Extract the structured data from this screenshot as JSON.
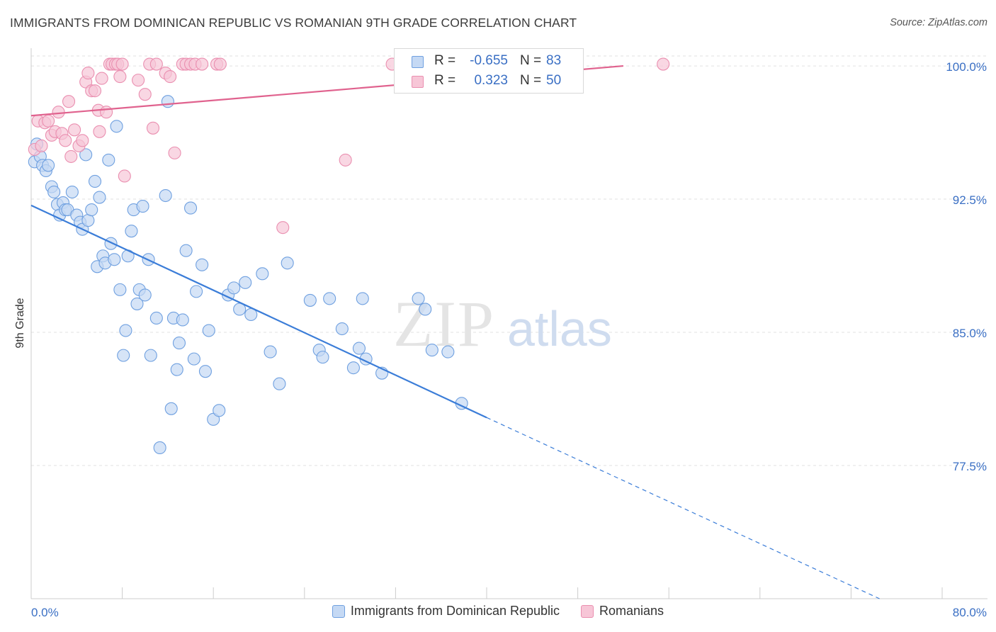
{
  "title": "IMMIGRANTS FROM DOMINICAN REPUBLIC VS ROMANIAN 9TH GRADE CORRELATION CHART",
  "source": "Source: ZipAtlas.com",
  "watermark": {
    "zip": "ZIP",
    "atlas": "atlas"
  },
  "stats": {
    "rows": [
      {
        "r_label": "R =",
        "r_value": "-0.655",
        "n_label": "N =",
        "n_value": "83",
        "color": "#6fa0e0",
        "fill": "#c5d9f4"
      },
      {
        "r_label": "R =",
        "r_value": "0.323",
        "n_label": "N =",
        "n_value": "50",
        "color": "#ea8fb0",
        "fill": "#f7c6d7"
      }
    ]
  },
  "legend": [
    {
      "label": "Immigrants from Dominican Republic",
      "fill": "#c5d9f4",
      "stroke": "#6fa0e0"
    },
    {
      "label": "Romanians",
      "fill": "#f7c6d7",
      "stroke": "#ea8fb0"
    }
  ],
  "chart_data": {
    "type": "scatter",
    "ylabel": "9th Grade",
    "xlim": [
      0,
      80
    ],
    "ylim": [
      70.0,
      101.0
    ],
    "x_tick_labels": [
      {
        "value": 0,
        "label": "0.0%"
      },
      {
        "value": 80,
        "label": "80.0%"
      }
    ],
    "y_ticks": [
      {
        "value": 100.0,
        "label": "100.0%"
      },
      {
        "value": 92.5,
        "label": "92.5%"
      },
      {
        "value": 85.0,
        "label": "85.0%"
      },
      {
        "value": 77.5,
        "label": "77.5%"
      }
    ],
    "x_minor_ticks": [
      8,
      16,
      24,
      32,
      40,
      48,
      56,
      64,
      72,
      80
    ],
    "grid": true,
    "series": [
      {
        "name": "Immigrants from Dominican Republic",
        "color": "#3b7dd8",
        "fill": "#c5d9f4",
        "stroke": "#6fa0e0",
        "trend": {
          "x0": 0,
          "y0": 92.15,
          "x1": 40,
          "y1": 80.2,
          "dash_to_x": 74.5,
          "dash_to_y": 70.0
        },
        "points": [
          [
            0.3,
            94.6
          ],
          [
            0.5,
            95.6
          ],
          [
            0.8,
            94.9
          ],
          [
            1.0,
            94.4
          ],
          [
            1.3,
            94.1
          ],
          [
            1.5,
            94.4
          ],
          [
            1.8,
            93.2
          ],
          [
            2.0,
            92.9
          ],
          [
            2.3,
            92.2
          ],
          [
            2.5,
            91.6
          ],
          [
            2.8,
            92.3
          ],
          [
            3.0,
            91.9
          ],
          [
            3.2,
            91.9
          ],
          [
            3.6,
            92.9
          ],
          [
            4.0,
            91.6
          ],
          [
            4.3,
            91.2
          ],
          [
            4.5,
            90.8
          ],
          [
            4.8,
            95.0
          ],
          [
            5.0,
            91.3
          ],
          [
            5.3,
            91.9
          ],
          [
            5.6,
            93.5
          ],
          [
            5.8,
            88.7
          ],
          [
            6.0,
            92.6
          ],
          [
            6.3,
            89.3
          ],
          [
            6.5,
            88.9
          ],
          [
            6.8,
            94.7
          ],
          [
            7.0,
            90.0
          ],
          [
            7.3,
            89.1
          ],
          [
            7.5,
            96.6
          ],
          [
            7.8,
            87.4
          ],
          [
            8.1,
            83.7
          ],
          [
            8.3,
            85.1
          ],
          [
            8.5,
            89.3
          ],
          [
            8.8,
            90.7
          ],
          [
            9.0,
            91.9
          ],
          [
            9.3,
            86.6
          ],
          [
            9.5,
            87.4
          ],
          [
            9.8,
            92.1
          ],
          [
            10.0,
            87.1
          ],
          [
            10.3,
            89.1
          ],
          [
            10.5,
            83.7
          ],
          [
            11.0,
            85.8
          ],
          [
            11.3,
            78.5
          ],
          [
            11.8,
            92.7
          ],
          [
            12.0,
            98.0
          ],
          [
            12.3,
            80.7
          ],
          [
            12.5,
            85.8
          ],
          [
            12.8,
            82.9
          ],
          [
            13.0,
            84.4
          ],
          [
            13.3,
            85.7
          ],
          [
            13.6,
            89.6
          ],
          [
            14.0,
            92.0
          ],
          [
            14.3,
            83.5
          ],
          [
            14.5,
            87.3
          ],
          [
            15.0,
            88.8
          ],
          [
            15.3,
            82.8
          ],
          [
            15.6,
            85.1
          ],
          [
            16.0,
            80.1
          ],
          [
            16.5,
            80.6
          ],
          [
            17.3,
            87.1
          ],
          [
            17.8,
            87.5
          ],
          [
            18.3,
            86.3
          ],
          [
            18.8,
            87.8
          ],
          [
            19.3,
            86.0
          ],
          [
            20.3,
            88.3
          ],
          [
            21.0,
            83.9
          ],
          [
            21.8,
            82.1
          ],
          [
            22.5,
            88.9
          ],
          [
            24.5,
            86.8
          ],
          [
            25.3,
            84.0
          ],
          [
            25.6,
            83.6
          ],
          [
            26.2,
            86.9
          ],
          [
            27.3,
            85.2
          ],
          [
            28.3,
            83.0
          ],
          [
            28.8,
            84.1
          ],
          [
            29.1,
            86.9
          ],
          [
            29.4,
            83.5
          ],
          [
            30.8,
            82.7
          ],
          [
            34.0,
            86.9
          ],
          [
            34.6,
            86.3
          ],
          [
            35.2,
            84.0
          ],
          [
            36.6,
            83.9
          ],
          [
            37.8,
            81.0
          ]
        ]
      },
      {
        "name": "Romanians",
        "color": "#e0628e",
        "fill": "#f7c6d7",
        "stroke": "#ea8fb0",
        "trend": {
          "x0": 0,
          "y0": 97.2,
          "x1": 52,
          "y1": 100.0
        },
        "points": [
          [
            0.3,
            95.3
          ],
          [
            0.6,
            96.9
          ],
          [
            0.9,
            95.5
          ],
          [
            1.2,
            96.8
          ],
          [
            1.5,
            96.9
          ],
          [
            1.8,
            96.1
          ],
          [
            2.1,
            96.3
          ],
          [
            2.4,
            97.4
          ],
          [
            2.7,
            96.2
          ],
          [
            3.0,
            95.8
          ],
          [
            3.3,
            98.0
          ],
          [
            3.5,
            94.9
          ],
          [
            3.8,
            96.4
          ],
          [
            4.2,
            95.5
          ],
          [
            4.5,
            95.8
          ],
          [
            4.8,
            99.1
          ],
          [
            5.0,
            99.6
          ],
          [
            5.3,
            98.6
          ],
          [
            5.6,
            98.6
          ],
          [
            5.9,
            97.5
          ],
          [
            6.0,
            96.3
          ],
          [
            6.2,
            99.3
          ],
          [
            6.6,
            97.4
          ],
          [
            6.9,
            100.1
          ],
          [
            7.1,
            100.1
          ],
          [
            7.4,
            100.1
          ],
          [
            7.6,
            100.1
          ],
          [
            7.8,
            99.4
          ],
          [
            8.0,
            100.1
          ],
          [
            8.2,
            93.8
          ],
          [
            9.4,
            99.2
          ],
          [
            10.0,
            98.4
          ],
          [
            10.4,
            100.1
          ],
          [
            10.7,
            96.5
          ],
          [
            11.0,
            100.1
          ],
          [
            11.8,
            99.6
          ],
          [
            12.2,
            99.4
          ],
          [
            12.6,
            95.1
          ],
          [
            13.3,
            100.1
          ],
          [
            13.6,
            100.1
          ],
          [
            14.0,
            100.1
          ],
          [
            14.4,
            100.1
          ],
          [
            15.0,
            100.1
          ],
          [
            16.3,
            100.1
          ],
          [
            16.6,
            100.1
          ],
          [
            22.1,
            90.9
          ],
          [
            27.6,
            94.7
          ],
          [
            31.7,
            100.1
          ],
          [
            34.8,
            100.1
          ],
          [
            55.5,
            100.1
          ]
        ]
      }
    ]
  }
}
